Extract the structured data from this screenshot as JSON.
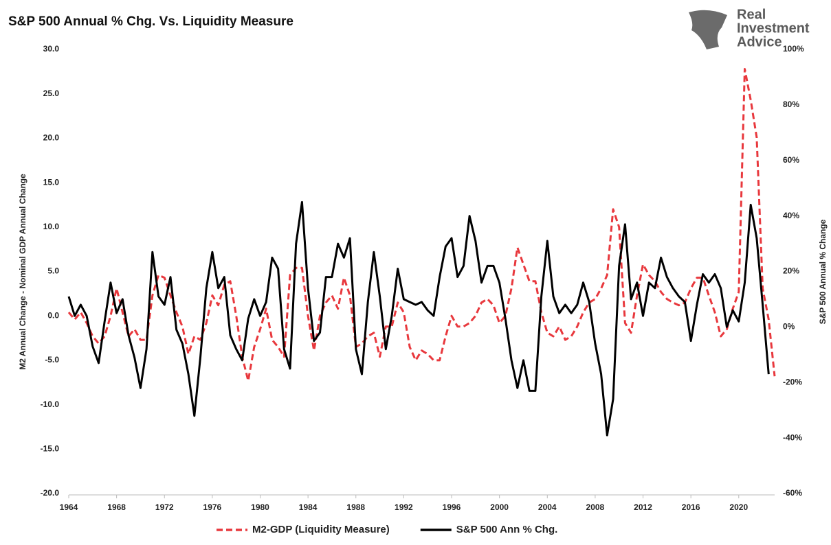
{
  "chart_data": {
    "type": "line",
    "title": "S&P 500 Annual % Chg. Vs. Liquidity Measure",
    "logo": [
      "Real",
      "Investment",
      "Advice"
    ],
    "ylabel": "M2 Annual Change - Nominal GDP Annual Change",
    "y2label": "S&P 500 Annual % Change",
    "xlim": [
      1964,
      2023
    ],
    "xticks": [
      1964,
      1968,
      1972,
      1976,
      1980,
      1984,
      1988,
      1992,
      1996,
      2000,
      2004,
      2008,
      2012,
      2016,
      2020
    ],
    "ylim": [
      -20,
      30
    ],
    "yticks": [
      {
        "value": -20,
        "label": "-20.0"
      },
      {
        "value": -15,
        "label": "-15.0"
      },
      {
        "value": -10,
        "label": "-10.0"
      },
      {
        "value": -5,
        "label": "-5.0"
      },
      {
        "value": 0,
        "label": "0.0"
      },
      {
        "value": 5,
        "label": "5.0"
      },
      {
        "value": 10,
        "label": "10.0"
      },
      {
        "value": 15,
        "label": "15.0"
      },
      {
        "value": 20,
        "label": "20.0"
      },
      {
        "value": 25,
        "label": "25.0"
      },
      {
        "value": 30,
        "label": "30.0"
      }
    ],
    "y2lim": [
      -60,
      100
    ],
    "y2ticks": [
      {
        "value": -60,
        "label": "-60%"
      },
      {
        "value": -40,
        "label": "-40%"
      },
      {
        "value": -20,
        "label": "-20%"
      },
      {
        "value": 0,
        "label": "0%"
      },
      {
        "value": 20,
        "label": "20%"
      },
      {
        "value": 40,
        "label": "40%"
      },
      {
        "value": 60,
        "label": "60%"
      },
      {
        "value": 80,
        "label": "80%"
      },
      {
        "value": 100,
        "label": "100%"
      }
    ],
    "grid": false,
    "legend": "bottom",
    "x": [
      1964.0,
      1964.5,
      1965.0,
      1965.5,
      1966.0,
      1966.5,
      1967.0,
      1967.5,
      1968.0,
      1968.5,
      1969.0,
      1969.5,
      1970.0,
      1970.5,
      1971.0,
      1971.5,
      1972.0,
      1972.5,
      1973.0,
      1973.5,
      1974.0,
      1974.5,
      1975.0,
      1975.5,
      1976.0,
      1976.5,
      1977.0,
      1977.5,
      1978.0,
      1978.5,
      1979.0,
      1979.5,
      1980.0,
      1980.5,
      1981.0,
      1981.5,
      1982.0,
      1982.5,
      1983.0,
      1983.5,
      1984.0,
      1984.5,
      1985.0,
      1985.5,
      1986.0,
      1986.5,
      1987.0,
      1987.5,
      1988.0,
      1988.5,
      1989.0,
      1989.5,
      1990.0,
      1990.5,
      1991.0,
      1991.5,
      1992.0,
      1992.5,
      1993.0,
      1993.5,
      1994.0,
      1994.5,
      1995.0,
      1995.5,
      1996.0,
      1996.5,
      1997.0,
      1997.5,
      1998.0,
      1998.5,
      1999.0,
      1999.5,
      2000.0,
      2000.5,
      2001.0,
      2001.5,
      2002.0,
      2002.5,
      2003.0,
      2003.5,
      2004.0,
      2004.5,
      2005.0,
      2005.5,
      2006.0,
      2006.5,
      2007.0,
      2007.5,
      2008.0,
      2008.5,
      2009.0,
      2009.5,
      2010.0,
      2010.5,
      2011.0,
      2011.5,
      2012.0,
      2012.5,
      2013.0,
      2013.5,
      2014.0,
      2014.5,
      2015.0,
      2015.5,
      2016.0,
      2016.5,
      2017.0,
      2017.5,
      2018.0,
      2018.5,
      2019.0,
      2019.5,
      2020.0,
      2020.5,
      2021.0,
      2021.5,
      2022.0,
      2022.5,
      2023.0
    ],
    "series": [
      {
        "name": "M2-GDP (Liquidity Measure)",
        "color": "#e8383d",
        "dashed": true,
        "axis": "y",
        "values": [
          0.4,
          -0.4,
          0.4,
          -0.8,
          -2.3,
          -3.1,
          -2.3,
          0,
          3.1,
          0.4,
          -2.3,
          -1.5,
          -2.7,
          -2.7,
          2.3,
          4.6,
          4.3,
          2.3,
          0.4,
          -1.2,
          -4.3,
          -2.3,
          -2.7,
          -0.8,
          2.3,
          1.2,
          3.5,
          3.9,
          0,
          -4.6,
          -7.3,
          -3.5,
          -1.5,
          0.8,
          -2.7,
          -3.5,
          -4.6,
          4.6,
          5.4,
          5.4,
          0,
          -3.9,
          0,
          1.5,
          2.3,
          0.8,
          4.3,
          2.3,
          -3.5,
          -3.1,
          -2.3,
          -1.9,
          -4.6,
          -1.2,
          -1.2,
          1.5,
          0.4,
          -3.5,
          -5.0,
          -3.9,
          -4.3,
          -5.0,
          -5.0,
          -2.3,
          0,
          -1.2,
          -1.2,
          -0.8,
          0,
          1.5,
          1.9,
          1.2,
          -0.8,
          0,
          3.1,
          7.7,
          5.8,
          3.9,
          3.9,
          0.4,
          -1.9,
          -2.3,
          -1.2,
          -2.7,
          -2.3,
          -1.2,
          0.4,
          1.5,
          1.9,
          3.1,
          4.6,
          12.0,
          10.0,
          -0.8,
          -1.9,
          2.3,
          5.8,
          4.6,
          3.9,
          2.7,
          1.9,
          1.5,
          1.2,
          1.5,
          3.1,
          4.3,
          4.3,
          2.3,
          0.4,
          -2.3,
          -1.5,
          0.8,
          2.7,
          27.8,
          24.3,
          20.1,
          3.1,
          -0.4,
          -6.8
        ]
      },
      {
        "name": "S&P 500 Ann % Chg.",
        "color": "#000000",
        "dashed": false,
        "axis": "y2",
        "values": [
          11,
          4,
          8,
          4,
          -7,
          -13,
          2,
          16,
          5,
          10,
          -3,
          -11,
          -22,
          -8,
          27,
          11,
          8,
          18,
          -1,
          -6,
          -17,
          -32,
          -11,
          14,
          27,
          14,
          18,
          -3,
          -8,
          -12,
          3,
          10,
          4,
          9,
          25,
          21,
          -8,
          -15,
          30,
          45,
          14,
          -5,
          -2,
          18,
          18,
          30,
          25,
          32,
          -8,
          -17,
          9,
          27,
          11,
          -8,
          4,
          21,
          10,
          9,
          8,
          9,
          6,
          4,
          18,
          29,
          32,
          18,
          22,
          40,
          31,
          16,
          22,
          22,
          16,
          3,
          -12,
          -22,
          -12,
          -23,
          -23,
          11,
          31,
          11,
          5,
          8,
          5,
          8,
          16,
          9,
          -6,
          -17,
          -39,
          -26,
          22,
          37,
          10,
          16,
          4,
          16,
          14,
          25,
          18,
          14,
          11,
          9,
          -5,
          8,
          19,
          16,
          19,
          14,
          0,
          6,
          2,
          16,
          44,
          32,
          8,
          -17,
          null
        ]
      }
    ]
  }
}
